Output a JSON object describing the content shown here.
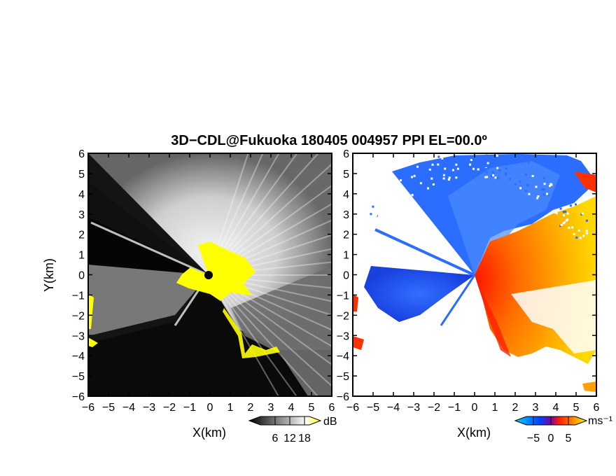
{
  "title": "3D−CDL@Fukuoka 180405 004957 PPI EL=00.0º",
  "chart_data": [
    {
      "type": "heatmap",
      "panel": "reflectivity",
      "xlabel": "X(km)",
      "ylabel": "Y(km)",
      "xlim": [
        -6,
        6
      ],
      "ylim": [
        -6,
        6
      ],
      "xticks": [
        "−6",
        "−5",
        "−4",
        "−3",
        "−2",
        "−1",
        "0",
        "1",
        "2",
        "3",
        "4",
        "5",
        "6"
      ],
      "yticks": [
        "6",
        "5",
        "4",
        "3",
        "2",
        "1",
        "0",
        "−1",
        "−2",
        "−3",
        "−4",
        "−5",
        "−6"
      ],
      "colorbar": {
        "unit": "dB",
        "tick_labels": [
          "6",
          "12",
          "18"
        ],
        "range": [
          0,
          20
        ],
        "colors": [
          "#000000",
          "#ffffff",
          "#ffff00"
        ]
      }
    },
    {
      "type": "heatmap",
      "panel": "doppler-velocity",
      "xlabel": "X(km)",
      "xlim": [
        -6,
        6
      ],
      "ylim": [
        -6,
        6
      ],
      "xticks": [
        "−6",
        "−5",
        "−4",
        "−3",
        "−2",
        "−1",
        "0",
        "1",
        "2",
        "3",
        "4",
        "5",
        "6"
      ],
      "yticks": [
        "6",
        "5",
        "4",
        "3",
        "2",
        "1",
        "0",
        "−1",
        "−2",
        "−3",
        "−4",
        "−5",
        "−6"
      ],
      "colorbar": {
        "unit": "ms⁻¹",
        "tick_labels": [
          "−5",
          "0",
          "5"
        ],
        "range": [
          -7,
          7
        ],
        "colors": [
          "#00c8ff",
          "#0050ff",
          "#ff2000",
          "#ffff00"
        ]
      }
    }
  ]
}
